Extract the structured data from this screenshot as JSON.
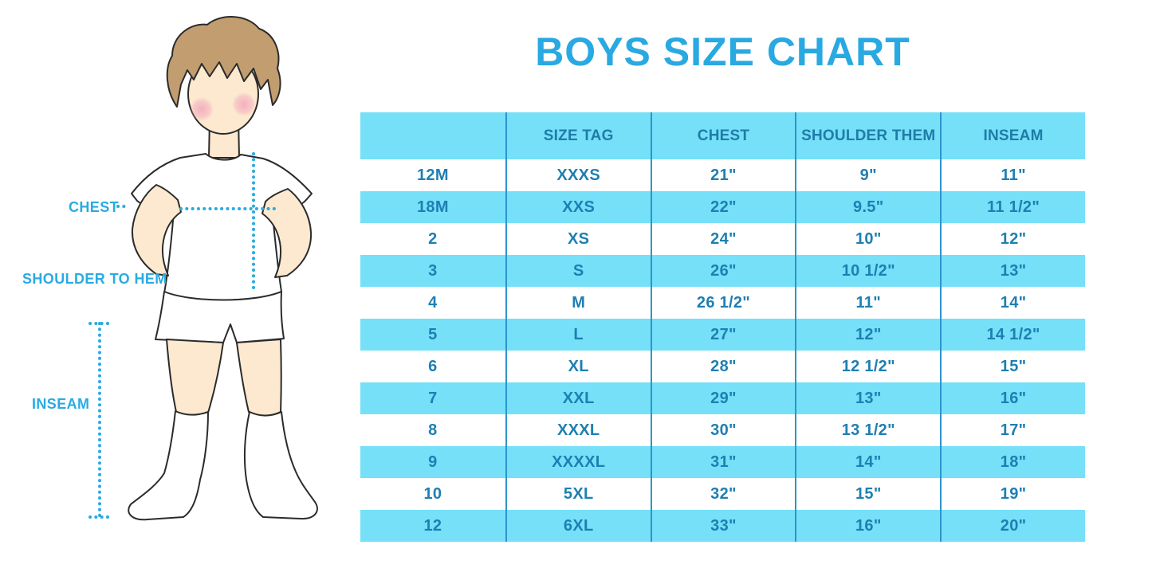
{
  "title": "BOYS SIZE CHART",
  "colors": {
    "accent_blue": "#29ABE2",
    "title_blue": "#29A9E1",
    "stripe_cyan": "#75E0F8",
    "table_text": "#1E7FB2",
    "divider": "#2C95CB",
    "skin": "#FCE9CF",
    "hair": "#C29D70",
    "blush": "#F2A6BC"
  },
  "figure": {
    "description": "boy-illustration-with-measurement-lines",
    "labels": {
      "chest": "CHEST",
      "shoulder_to_hem": "SHOULDER TO HEM",
      "inseam": "INSEAM"
    }
  },
  "chart_data": {
    "type": "table",
    "title": "BOYS SIZE CHART",
    "columns": [
      "",
      "SIZE TAG",
      "CHEST",
      "SHOULDER THEM",
      "INSEAM"
    ],
    "rows": [
      [
        "12M",
        "XXXS",
        "21\"",
        "9\"",
        "11\""
      ],
      [
        "18M",
        "XXS",
        "22\"",
        "9.5\"",
        "11 1/2\""
      ],
      [
        "2",
        "XS",
        "24\"",
        "10\"",
        "12\""
      ],
      [
        "3",
        "S",
        "26\"",
        "10 1/2\"",
        "13\""
      ],
      [
        "4",
        "M",
        "26 1/2\"",
        "11\"",
        "14\""
      ],
      [
        "5",
        "L",
        "27\"",
        "12\"",
        "14 1/2\""
      ],
      [
        "6",
        "XL",
        "28\"",
        "12 1/2\"",
        "15\""
      ],
      [
        "7",
        "XXL",
        "29\"",
        "13\"",
        "16\""
      ],
      [
        "8",
        "XXXL",
        "30\"",
        "13 1/2\"",
        "17\""
      ],
      [
        "9",
        "XXXXL",
        "31\"",
        "14\"",
        "18\""
      ],
      [
        "10",
        "5XL",
        "32\"",
        "15\"",
        "19\""
      ],
      [
        "12",
        "6XL",
        "33\"",
        "16\"",
        "20\""
      ]
    ],
    "layout_hints": {
      "striped_rows": "alternating, 2nd/4th/6th... rows and header filled cyan",
      "grid": "vertical column dividers only, no outer border"
    }
  }
}
